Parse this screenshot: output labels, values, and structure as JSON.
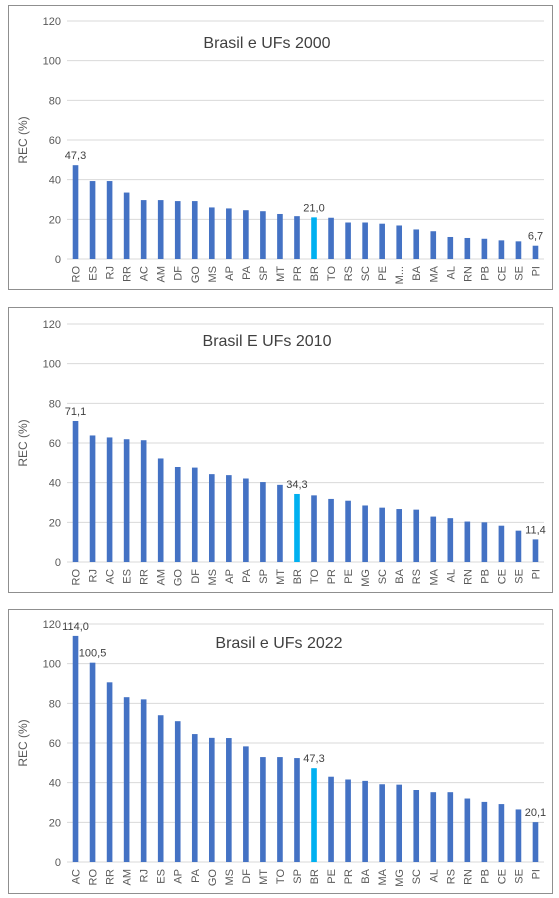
{
  "chart_data": [
    {
      "type": "bar",
      "title": "Brasil e UFs 2000",
      "ylabel": "REC (%)",
      "ylim": [
        0,
        120
      ],
      "yticks": [
        "0",
        "20",
        "40",
        "60",
        "80",
        "100",
        "120"
      ],
      "categories": [
        "RO",
        "ES",
        "RJ",
        "RR",
        "AC",
        "AM",
        "DF",
        "GO",
        "MS",
        "AP",
        "PA",
        "SP",
        "MT",
        "PR",
        "BR",
        "TO",
        "RS",
        "SC",
        "PE",
        "M...",
        "BA",
        "MA",
        "AL",
        "RN",
        "PB",
        "CE",
        "SE",
        "PI"
      ],
      "values": [
        47.3,
        39.3,
        39.3,
        33.5,
        29.7,
        29.7,
        29.2,
        29.2,
        26.0,
        25.5,
        24.6,
        24.1,
        22.7,
        21.6,
        21.0,
        20.8,
        18.4,
        18.4,
        17.8,
        16.9,
        14.9,
        14.0,
        11.1,
        10.6,
        10.2,
        9.4,
        8.9,
        6.7
      ],
      "data_labels": [
        {
          "index": 0,
          "text": "47,3"
        },
        {
          "index": 14,
          "text": "21,0"
        },
        {
          "index": 27,
          "text": "6,7"
        }
      ],
      "highlight": "BR",
      "colors": {
        "bar": "#4472c4",
        "highlight": "#00b0f0"
      }
    },
    {
      "type": "bar",
      "title": "Brasil E UFs 2010",
      "ylabel": "REC (%)",
      "ylim": [
        0,
        120
      ],
      "yticks": [
        "0",
        "20",
        "40",
        "60",
        "80",
        "100",
        "120"
      ],
      "categories": [
        "RO",
        "RJ",
        "AC",
        "ES",
        "RR",
        "AM",
        "GO",
        "DF",
        "MS",
        "AP",
        "PA",
        "SP",
        "MT",
        "BR",
        "TO",
        "PR",
        "PE",
        "MG",
        "SC",
        "BA",
        "RS",
        "MA",
        "AL",
        "RN",
        "PB",
        "CE",
        "SE",
        "PI"
      ],
      "values": [
        71.1,
        63.8,
        62.8,
        61.9,
        61.4,
        52.2,
        47.9,
        47.6,
        44.3,
        43.8,
        42.1,
        40.3,
        38.9,
        34.3,
        33.6,
        31.8,
        30.9,
        28.5,
        27.4,
        26.7,
        26.4,
        22.9,
        22.1,
        20.4,
        20.0,
        18.3,
        15.8,
        11.4
      ],
      "data_labels": [
        {
          "index": 0,
          "text": "71,1"
        },
        {
          "index": 13,
          "text": "34,3"
        },
        {
          "index": 27,
          "text": "11,4"
        }
      ],
      "highlight": "BR",
      "colors": {
        "bar": "#4472c4",
        "highlight": "#00b0f0"
      }
    },
    {
      "type": "bar",
      "title": "Brasil e UFs 2022",
      "ylabel": "REC (%)",
      "ylim": [
        0,
        120
      ],
      "yticks": [
        "0",
        "20",
        "40",
        "60",
        "80",
        "100",
        "120"
      ],
      "categories": [
        "AC",
        "RO",
        "RR",
        "AM",
        "RJ",
        "ES",
        "AP",
        "PA",
        "GO",
        "MS",
        "DF",
        "MT",
        "TO",
        "SP",
        "BR",
        "PE",
        "PR",
        "BA",
        "MA",
        "MG",
        "SC",
        "AL",
        "RS",
        "RN",
        "PB",
        "CE",
        "SE",
        "PI"
      ],
      "values": [
        114.0,
        100.5,
        90.6,
        83.1,
        82.0,
        74.0,
        71.0,
        64.5,
        62.6,
        62.5,
        58.3,
        52.9,
        52.9,
        52.4,
        47.3,
        43.0,
        41.6,
        40.9,
        39.2,
        39.0,
        36.3,
        35.2,
        35.2,
        32.0,
        30.3,
        29.2,
        26.5,
        20.1
      ],
      "data_labels": [
        {
          "index": 0,
          "text": "114,0"
        },
        {
          "index": 1,
          "text": "100,5"
        },
        {
          "index": 14,
          "text": "47,3"
        },
        {
          "index": 27,
          "text": "20,1"
        }
      ],
      "highlight": "BR",
      "colors": {
        "bar": "#4472c4",
        "highlight": "#00b0f0"
      }
    }
  ]
}
